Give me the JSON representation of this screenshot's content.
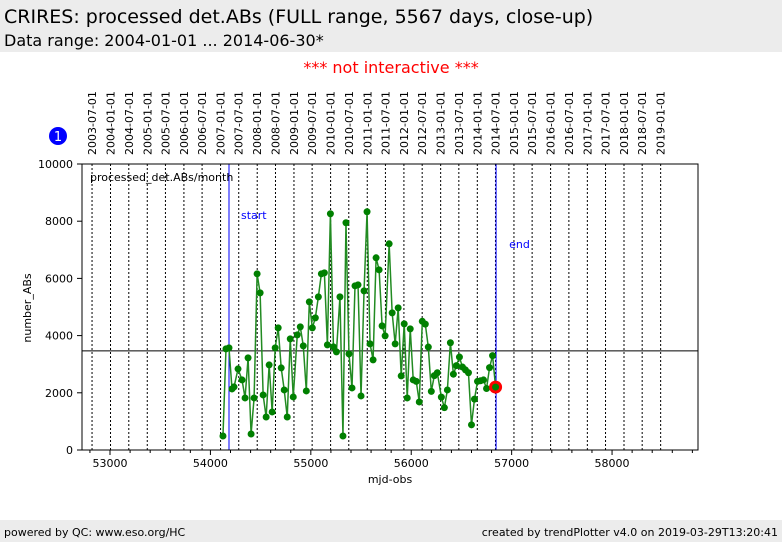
{
  "header": {
    "title": "CRIRES: processed det.ABs (FULL range, 5567 days, close-up)",
    "subtitle": "Data range: 2004-01-01 ... 2014-06-30*"
  },
  "notice": "*** not interactive ***",
  "badge": "1",
  "footer": {
    "left": "powered by QC: www.eso.org/HC",
    "right": "created by trendPlotter v4.0 on 2019-03-29T13:20:41"
  },
  "colors": {
    "series": "#008000",
    "line": "#228B22",
    "marker_last": "#ff0000",
    "start_end": "#0000ff",
    "badge": "#0000ff"
  },
  "chart_data": {
    "type": "line",
    "title": "processed_det.ABs/month",
    "xlabel": "mjd-obs",
    "ylabel": "number_ABs",
    "xlim": [
      52721,
      58856
    ],
    "ylim": [
      0,
      10000
    ],
    "xticks": [
      53000,
      54000,
      55000,
      56000,
      57000,
      58000
    ],
    "xtick_labels": [
      "53000",
      "54000",
      "55000",
      "56000",
      "57000",
      "58000"
    ],
    "yticks": [
      0,
      2000,
      4000,
      6000,
      8000,
      10000
    ],
    "ytick_labels": [
      "0",
      "2000",
      "4000",
      "6000",
      "8000",
      "10000"
    ],
    "reference_line": 3465,
    "start_mjd": 54185,
    "end_mjd": 56845,
    "start_label": "start",
    "end_label": "end",
    "date_labels": [
      "2003-07-01",
      "2004-01-01",
      "2004-07-01",
      "2005-01-01",
      "2005-07-01",
      "2006-01-01",
      "2006-07-01",
      "2007-01-01",
      "2007-07-01",
      "2008-01-01",
      "2008-07-01",
      "2009-01-01",
      "2009-07-01",
      "2010-01-01",
      "2010-07-01",
      "2011-01-01",
      "2011-07-01",
      "2012-01-01",
      "2012-07-01",
      "2013-01-01",
      "2013-07-01",
      "2014-01-01",
      "2014-07-01",
      "2015-01-01",
      "2015-07-01",
      "2016-01-01",
      "2016-07-01",
      "2017-01-01",
      "2017-07-01",
      "2018-01-01",
      "2018-07-01",
      "2019-01-01"
    ],
    "x": [
      54125,
      54155,
      54185,
      54215,
      54235,
      54275,
      54315,
      54345,
      54375,
      54405,
      54435,
      54465,
      54495,
      54525,
      54555,
      54585,
      54615,
      54645,
      54675,
      54705,
      54735,
      54765,
      54795,
      54825,
      54865,
      54895,
      54925,
      54955,
      54985,
      55015,
      55045,
      55075,
      55105,
      55135,
      55165,
      55195,
      55225,
      55255,
      55290,
      55320,
      55350,
      55380,
      55410,
      55440,
      55470,
      55500,
      55530,
      55560,
      55590,
      55620,
      55650,
      55680,
      55710,
      55740,
      55780,
      55810,
      55840,
      55870,
      55900,
      55930,
      55960,
      55990,
      56020,
      56050,
      56080,
      56110,
      56140,
      56170,
      56200,
      56230,
      56260,
      56300,
      56330,
      56360,
      56390,
      56420,
      56450,
      56480,
      56510,
      56540,
      56570,
      56600,
      56630,
      56660,
      56690,
      56720,
      56750,
      56780,
      56810,
      56840
    ],
    "y": [
      490,
      3535,
      3570,
      2135,
      2205,
      2835,
      2450,
      1820,
      3220,
      560,
      1820,
      6160,
      5495,
      1925,
      1155,
      2975,
      1330,
      3570,
      4270,
      2870,
      2100,
      1155,
      3885,
      1855,
      4025,
      4305,
      3640,
      2065,
      5180,
      4270,
      4620,
      5355,
      6160,
      6195,
      3675,
      8260,
      3605,
      3430,
      5355,
      490,
      7945,
      3360,
      2170,
      5740,
      5775,
      1890,
      5565,
      8330,
      3710,
      3150,
      6720,
      6300,
      4340,
      3990,
      7210,
      4795,
      3710,
      4970,
      2590,
      4410,
      1820,
      4235,
      2450,
      2400,
      1680,
      4500,
      4400,
      3600,
      2050,
      2600,
      2700,
      1850,
      1480,
      2100,
      3750,
      2650,
      2950,
      3250,
      2900,
      2800,
      2700,
      880,
      1780,
      2400,
      2420,
      2450,
      2150,
      2880,
      3300,
      2200
    ]
  }
}
